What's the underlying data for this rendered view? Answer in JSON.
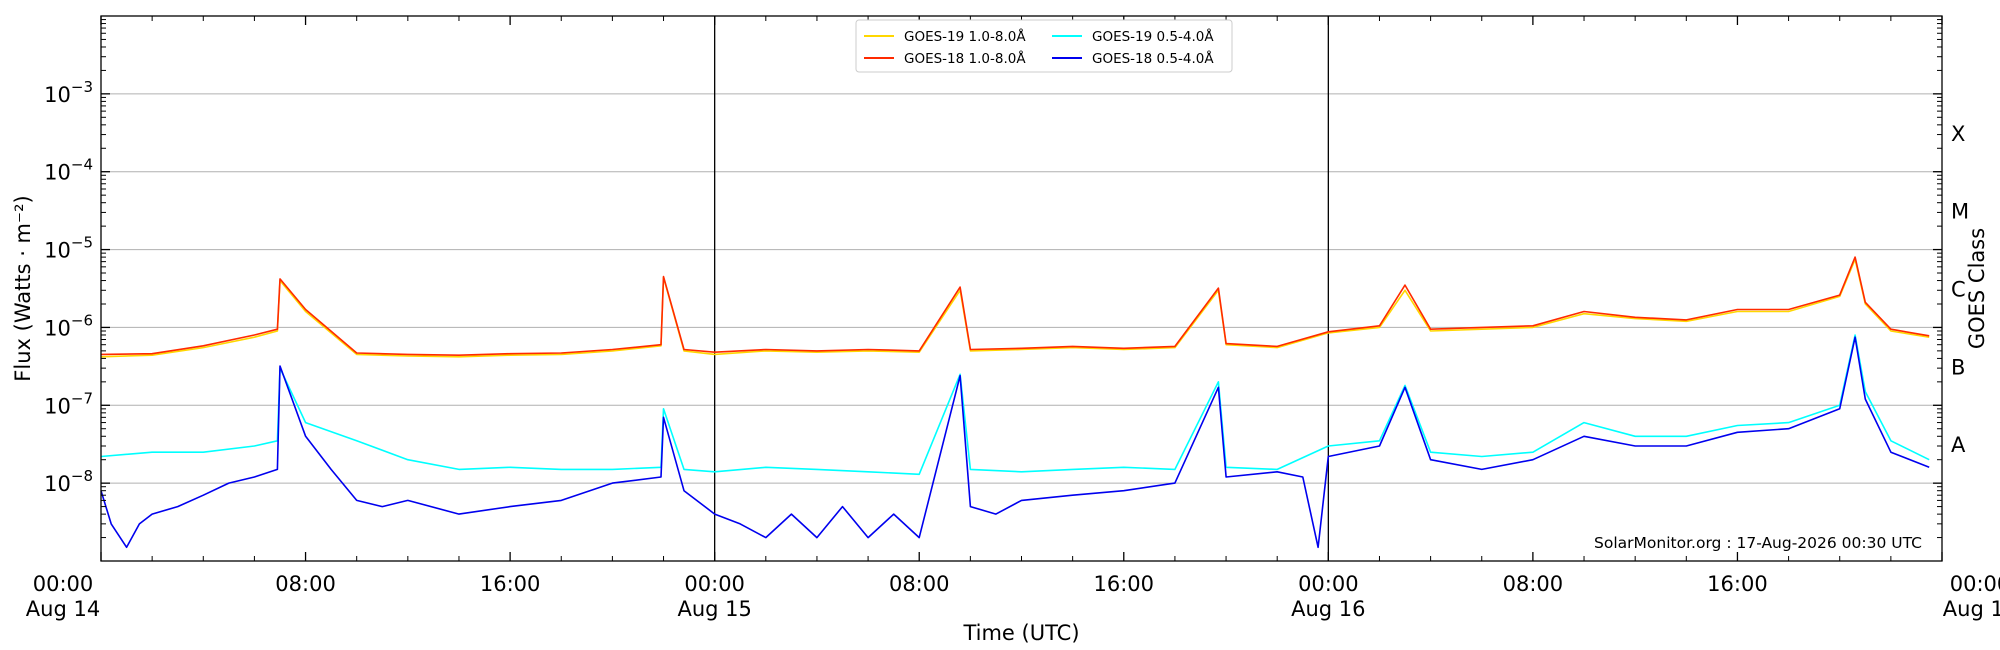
{
  "chart_data": {
    "type": "line",
    "title": "",
    "xlabel": "Time (UTC)",
    "ylabel": "Flux (Watts · m⁻²)",
    "right_ylabel": "GOES Class",
    "yscale": "log",
    "x_range_hours": [
      0,
      72
    ],
    "ylim": [
      1e-09,
      0.01
    ],
    "grid": "horizontal",
    "legend_placement": "top-center",
    "x_ticks": [
      {
        "hour": 0,
        "time": "00:00",
        "date": "Aug 14"
      },
      {
        "hour": 8,
        "time": "08:00",
        "date": ""
      },
      {
        "hour": 16,
        "time": "16:00",
        "date": ""
      },
      {
        "hour": 24,
        "time": "00:00",
        "date": "Aug 15"
      },
      {
        "hour": 32,
        "time": "08:00",
        "date": ""
      },
      {
        "hour": 40,
        "time": "16:00",
        "date": ""
      },
      {
        "hour": 48,
        "time": "00:00",
        "date": "Aug 16"
      },
      {
        "hour": 56,
        "time": "08:00",
        "date": ""
      },
      {
        "hour": 64,
        "time": "16:00",
        "date": ""
      },
      {
        "hour": 72,
        "time": "00:00",
        "date": "Aug 17"
      }
    ],
    "y_ticks": [
      {
        "exp": -8,
        "base": "10",
        "sup": "−8"
      },
      {
        "exp": -7,
        "base": "10",
        "sup": "−7"
      },
      {
        "exp": -6,
        "base": "10",
        "sup": "−6"
      },
      {
        "exp": -5,
        "base": "10",
        "sup": "−5"
      },
      {
        "exp": -4,
        "base": "10",
        "sup": "−4"
      },
      {
        "exp": -3,
        "base": "10",
        "sup": "−3"
      }
    ],
    "goes_classes": [
      {
        "label": "A",
        "exp": -7.5
      },
      {
        "label": "B",
        "exp": -6.5
      },
      {
        "label": "C",
        "exp": -5.5
      },
      {
        "label": "M",
        "exp": -4.5
      },
      {
        "label": "X",
        "exp": -3.5
      }
    ],
    "day_boundaries_hours": [
      24,
      48
    ],
    "credit": "SolarMonitor.org : 17-Aug-2026 00:30 UTC",
    "series": [
      {
        "name": "GOES-19 1.0-8.0Å",
        "color": "#ffd700",
        "x": [
          0,
          2,
          4,
          6,
          6.9,
          7,
          8,
          10,
          12,
          14,
          16,
          18,
          20,
          21.9,
          22,
          22.8,
          24,
          26,
          28,
          30,
          32,
          33.6,
          34,
          36,
          38,
          40,
          42,
          43.7,
          44,
          46,
          48,
          50,
          51,
          52,
          54,
          56,
          58,
          60,
          62,
          64,
          66,
          68,
          68.6,
          69,
          70,
          71.5
        ],
        "y": [
          4.2e-07,
          4.4e-07,
          5.5e-07,
          7.5e-07,
          9e-07,
          4e-06,
          1.6e-06,
          4.5e-07,
          4.3e-07,
          4.2e-07,
          4.4e-07,
          4.5e-07,
          5e-07,
          5.8e-07,
          4.4e-06,
          5e-07,
          4.5e-07,
          5e-07,
          4.8e-07,
          5e-07,
          4.8e-07,
          3e-06,
          5e-07,
          5.2e-07,
          5.5e-07,
          5.2e-07,
          5.5e-07,
          3e-06,
          6e-07,
          5.5e-07,
          8.5e-07,
          1e-06,
          3e-06,
          9e-07,
          9.5e-07,
          1e-06,
          1.5e-06,
          1.3e-06,
          1.2e-06,
          1.6e-06,
          1.6e-06,
          2.5e-06,
          7.5e-06,
          2e-06,
          9e-07,
          7.5e-07
        ]
      },
      {
        "name": "GOES-18 1.0-8.0Å",
        "color": "#ff2a00",
        "x": [
          0,
          2,
          4,
          6,
          6.9,
          7,
          8,
          10,
          12,
          14,
          16,
          18,
          20,
          21.9,
          22,
          22.8,
          24,
          26,
          28,
          30,
          32,
          33.6,
          34,
          36,
          38,
          40,
          42,
          43.7,
          44,
          46,
          48,
          50,
          51,
          52,
          54,
          56,
          58,
          60,
          62,
          64,
          66,
          68,
          68.6,
          69,
          70,
          71.5
        ],
        "y": [
          4.5e-07,
          4.6e-07,
          5.8e-07,
          8e-07,
          9.5e-07,
          4.2e-06,
          1.7e-06,
          4.7e-07,
          4.5e-07,
          4.4e-07,
          4.6e-07,
          4.7e-07,
          5.2e-07,
          6e-07,
          4.5e-06,
          5.2e-07,
          4.8e-07,
          5.2e-07,
          5e-07,
          5.2e-07,
          5e-07,
          3.3e-06,
          5.2e-07,
          5.4e-07,
          5.7e-07,
          5.4e-07,
          5.7e-07,
          3.2e-06,
          6.2e-07,
          5.7e-07,
          8.8e-07,
          1.05e-06,
          3.5e-06,
          9.5e-07,
          1e-06,
          1.05e-06,
          1.6e-06,
          1.35e-06,
          1.25e-06,
          1.7e-06,
          1.7e-06,
          2.6e-06,
          8e-06,
          2.1e-06,
          9.5e-07,
          7.8e-07
        ]
      },
      {
        "name": "GOES-19 0.5-4.0Å",
        "color": "#00ffff",
        "x": [
          0,
          2,
          4,
          6,
          6.9,
          7,
          8,
          10,
          12,
          14,
          16,
          18,
          20,
          21.9,
          22,
          22.8,
          24,
          26,
          28,
          30,
          32,
          33.6,
          34,
          36,
          38,
          40,
          42,
          43.7,
          44,
          46,
          48,
          50,
          51,
          52,
          54,
          56,
          58,
          60,
          62,
          64,
          66,
          68,
          68.6,
          69,
          70,
          71.5
        ],
        "y": [
          2.2e-08,
          2.5e-08,
          2.5e-08,
          3e-08,
          3.5e-08,
          3e-07,
          6e-08,
          3.5e-08,
          2e-08,
          1.5e-08,
          1.6e-08,
          1.5e-08,
          1.5e-08,
          1.6e-08,
          9e-08,
          1.5e-08,
          1.4e-08,
          1.6e-08,
          1.5e-08,
          1.4e-08,
          1.3e-08,
          2.5e-07,
          1.5e-08,
          1.4e-08,
          1.5e-08,
          1.6e-08,
          1.5e-08,
          2e-07,
          1.6e-08,
          1.5e-08,
          3e-08,
          3.5e-08,
          1.8e-07,
          2.5e-08,
          2.2e-08,
          2.5e-08,
          6e-08,
          4e-08,
          4e-08,
          5.5e-08,
          6e-08,
          1e-07,
          8e-07,
          1.5e-07,
          3.5e-08,
          2e-08
        ]
      },
      {
        "name": "GOES-18 0.5-4.0Å",
        "color": "#0000ee",
        "x": [
          0,
          0.4,
          1,
          1.5,
          2,
          3,
          4,
          5,
          6,
          6.9,
          7,
          8,
          9,
          10,
          11,
          12,
          14,
          16,
          18,
          20,
          21.9,
          22,
          22.8,
          24,
          25,
          26,
          27,
          28,
          29,
          30,
          31,
          32,
          33.6,
          34,
          35,
          36,
          38,
          40,
          42,
          43.7,
          44,
          46,
          47,
          47.6,
          48,
          50,
          51,
          52,
          54,
          56,
          58,
          60,
          62,
          64,
          66,
          68,
          68.6,
          69,
          70,
          71.5
        ],
        "y": [
          8e-09,
          3e-09,
          1.5e-09,
          3e-09,
          4e-09,
          5e-09,
          7e-09,
          1e-08,
          1.2e-08,
          1.5e-08,
          3.2e-07,
          4e-08,
          1.5e-08,
          6e-09,
          5e-09,
          6e-09,
          4e-09,
          5e-09,
          6e-09,
          1e-08,
          1.2e-08,
          7e-08,
          8e-09,
          4e-09,
          3e-09,
          2e-09,
          4e-09,
          2e-09,
          5e-09,
          2e-09,
          4e-09,
          2e-09,
          2.4e-07,
          5e-09,
          4e-09,
          6e-09,
          7e-09,
          8e-09,
          1e-08,
          1.7e-07,
          1.2e-08,
          1.4e-08,
          1.2e-08,
          1.5e-09,
          2.2e-08,
          3e-08,
          1.7e-07,
          2e-08,
          1.5e-08,
          2e-08,
          4e-08,
          3e-08,
          3e-08,
          4.5e-08,
          5e-08,
          9e-08,
          7.5e-07,
          1.2e-07,
          2.5e-08,
          1.6e-08
        ]
      }
    ]
  }
}
